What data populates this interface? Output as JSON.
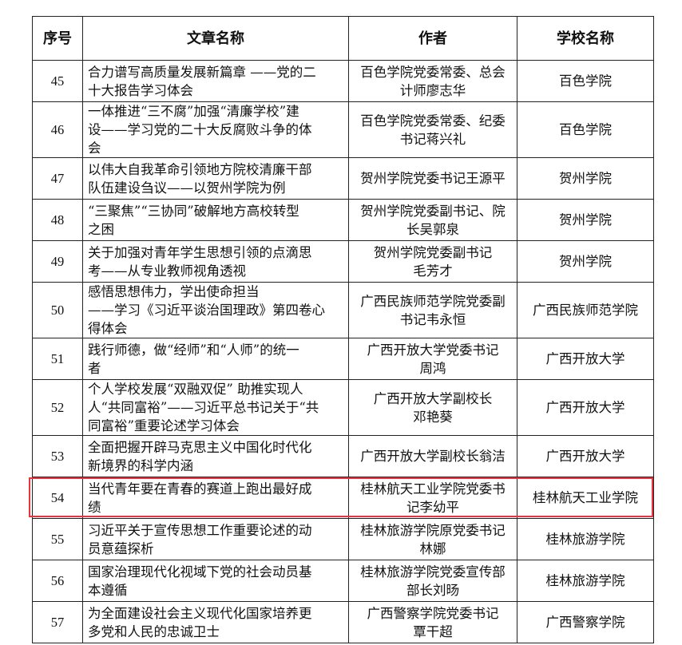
{
  "table": {
    "headers": [
      "序号",
      "文章名称",
      "作者",
      "学校名称"
    ],
    "rows": [
      {
        "num": "45",
        "title": "合力谱写高质量发展新篇章 ——党的二\n十大报告学习体会",
        "author": "百色学院党委常委、总会\n计师廖志华",
        "school": "百色学院"
      },
      {
        "num": "46",
        "title": "一体推进“三不腐”加强“清廉学校”建\n设——学习党的二十大反腐败斗争的体\n会",
        "author": "百色学院党委常委、纪委\n书记蒋兴礼",
        "school": "百色学院"
      },
      {
        "num": "47",
        "title": "以伟大自我革命引领地方院校清廉干部\n队伍建设刍议——以贺州学院为例",
        "author": "贺州学院党委书记王源平",
        "school": "贺州学院"
      },
      {
        "num": "48",
        "title": "“三聚焦”“三协同”破解地方高校转型\n之困",
        "author": "贺州学院党委副书记、院\n长吴郭泉",
        "school": "贺州学院"
      },
      {
        "num": "49",
        "title": "关于加强对青年学生思想引领的点滴思\n考——从专业教师视角透视",
        "author": "贺州学院党委副书记\n毛芳才",
        "school": "贺州学院"
      },
      {
        "num": "50",
        "title": "感悟思想伟力，学出使命担当\n——学习《习近平谈治国理政》第四卷心\n得体会",
        "author": "广西民族师范学院党委副\n书记韦永恒",
        "school": "广西民族师范学院"
      },
      {
        "num": "51",
        "title": "践行师德，做“经师”和“人师”的统一\n者",
        "author": "广西开放大学党委书记\n周鸿",
        "school": "广西开放大学"
      },
      {
        "num": "52",
        "title": "个人学校发展“双融双促” 助推实现人\n人“共同富裕”——习近平总书记关于“共\n同富裕”重要论述学习体会",
        "author": "广西开放大学副校长\n邓艳葵",
        "school": "广西开放大学"
      },
      {
        "num": "53",
        "title": "全面把握开辟马克思主义中国化时代化\n新境界的科学内涵",
        "author": "广西开放大学副校长翁洁",
        "school": "广西开放大学"
      },
      {
        "num": "54",
        "title": "当代青年要在青春的赛道上跑出最好成\n绩",
        "author": "桂林航天工业学院党委书\n记李幼平",
        "school": "桂林航天工业学院"
      },
      {
        "num": "55",
        "title": "习近平关于宣传思想工作重要论述的动\n员意蕴探析",
        "author": "桂林旅游学院原党委书记\n林娜",
        "school": "桂林旅游学院"
      },
      {
        "num": "56",
        "title": "国家治理现代化视域下党的社会动员基\n本遵循",
        "author": "桂林旅游学院党委宣传部\n部长刘旸",
        "school": "桂林旅游学院"
      },
      {
        "num": "57",
        "title": "为全面建设社会主义现代化国家培养更\n多党和人民的忠诚卫士",
        "author": "广西警察学院党委书记\n覃干超",
        "school": "广西警察学院"
      }
    ],
    "highlighted_row": "54",
    "highlight_color": "#e8343a"
  }
}
